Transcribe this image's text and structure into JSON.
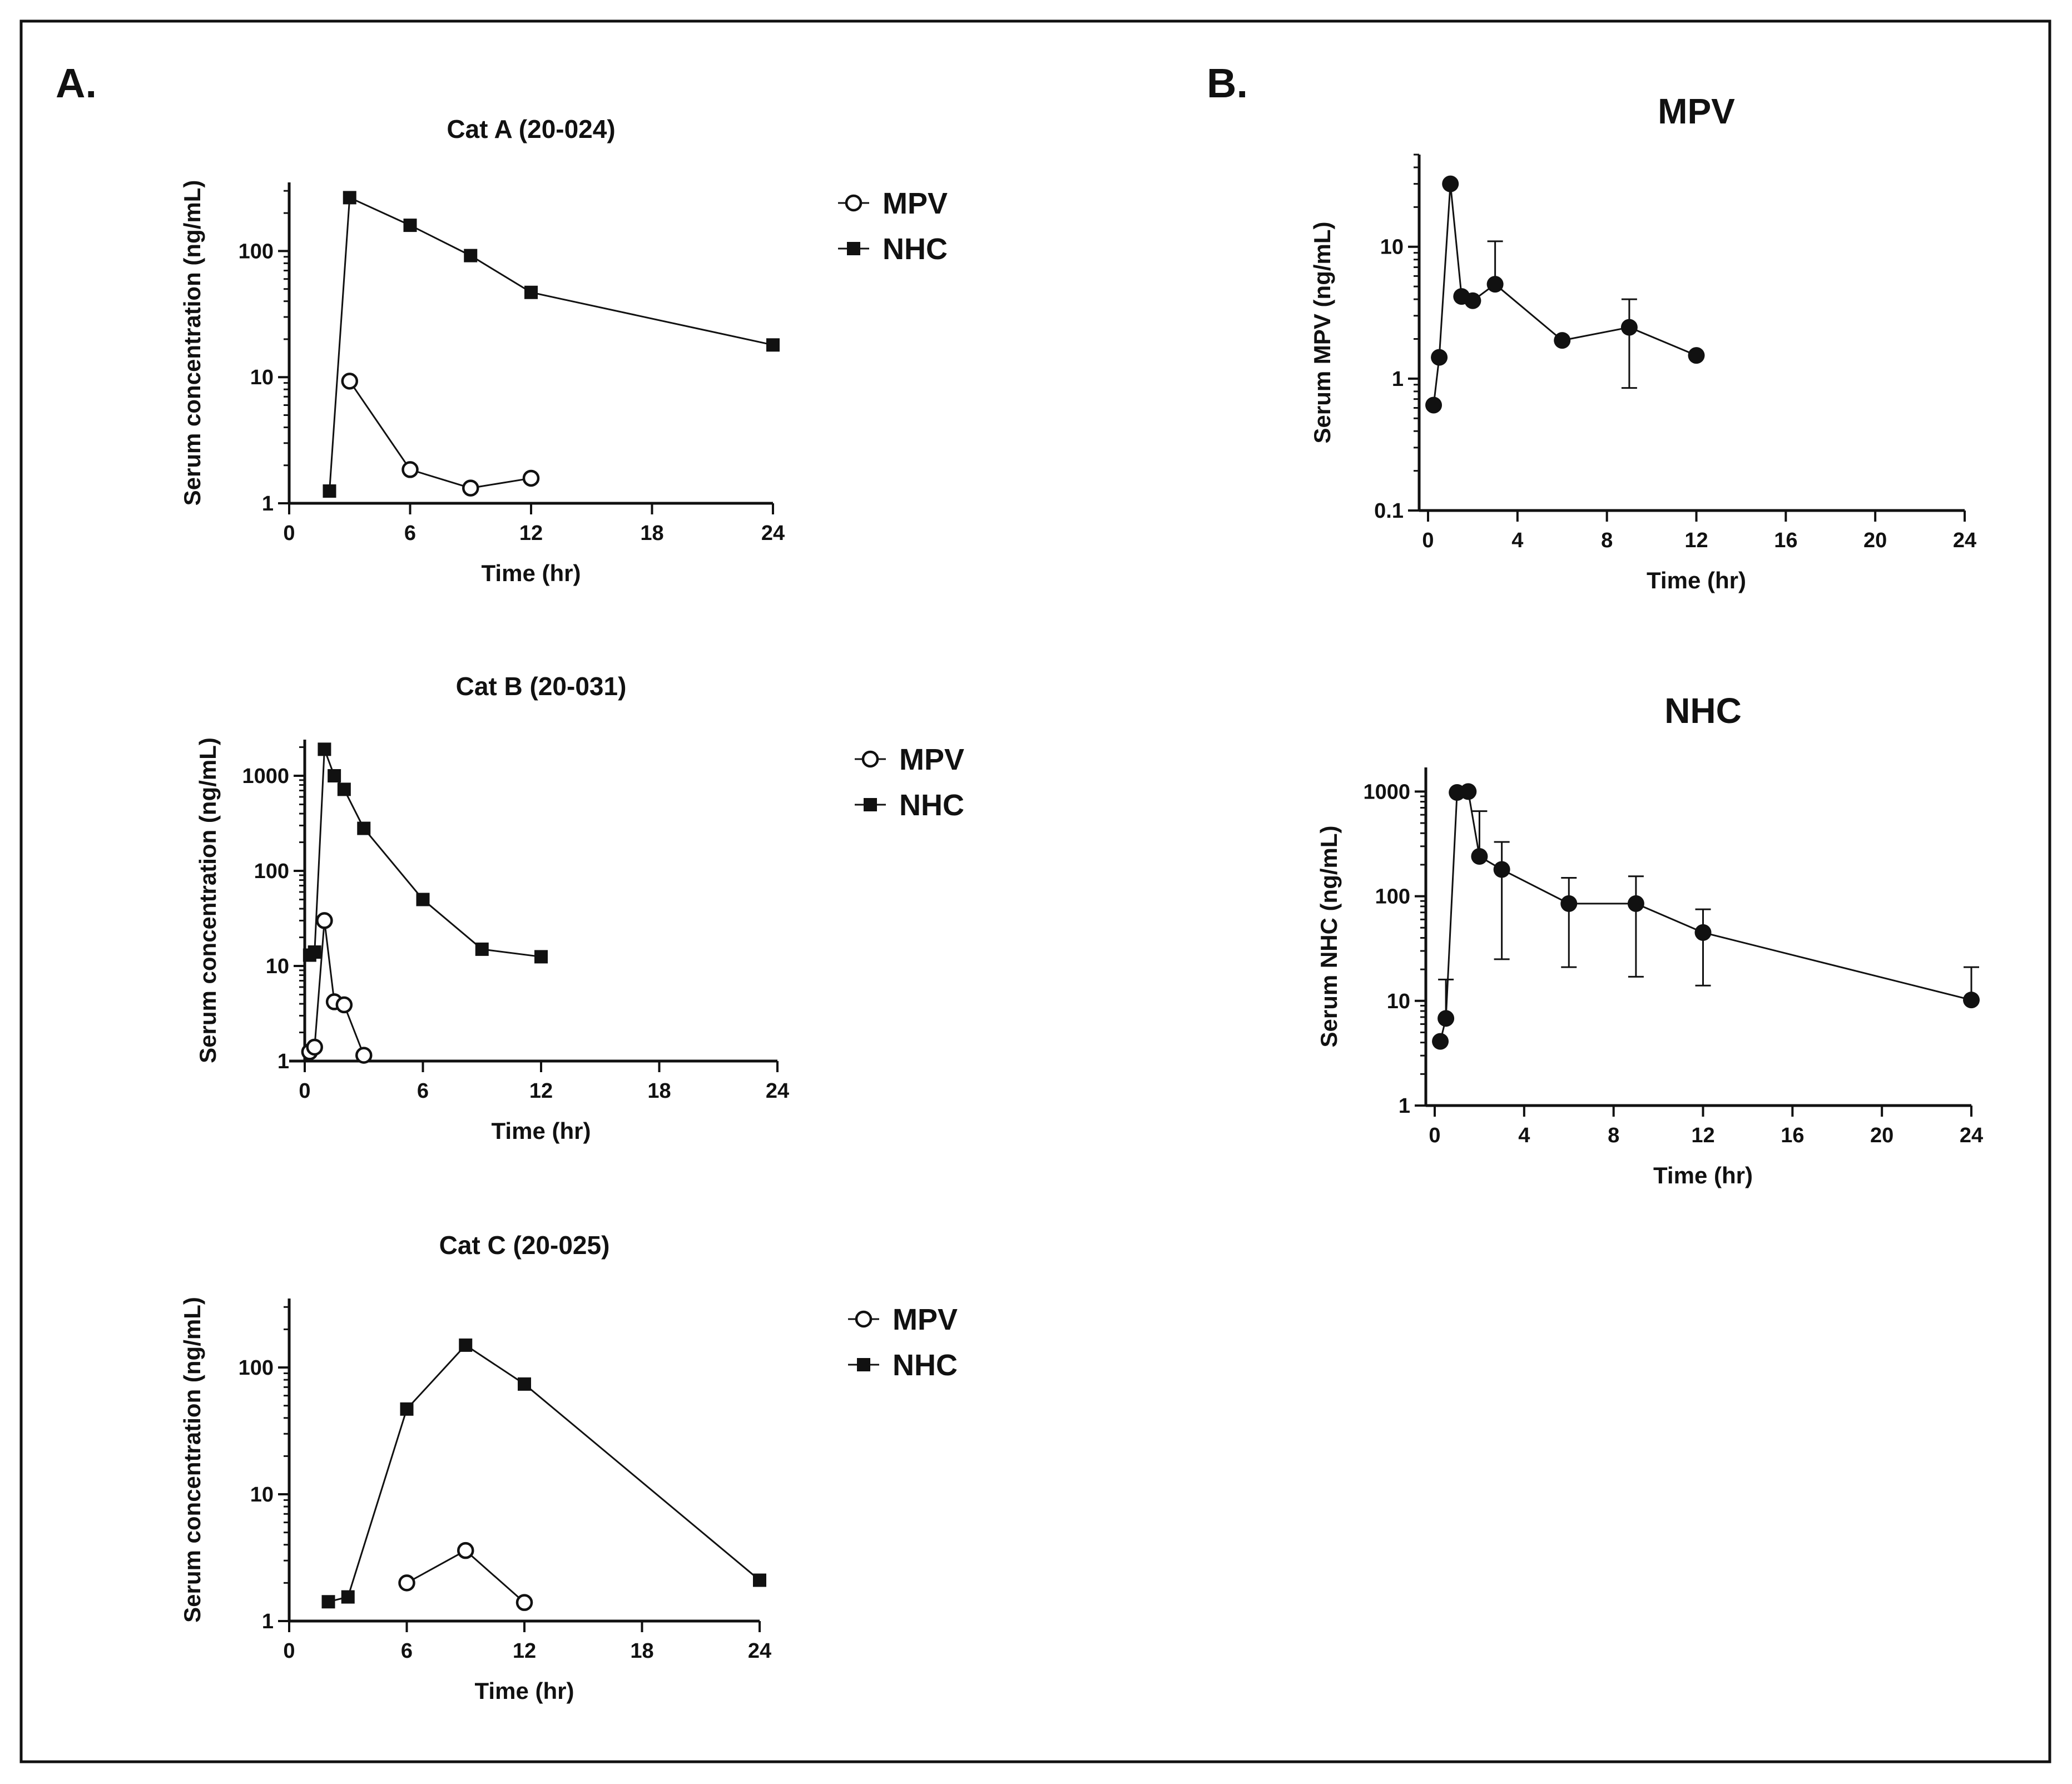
{
  "panels": {
    "a_label": "A.",
    "b_label": "B."
  },
  "colors": {
    "ink": "#111111",
    "background": "#ffffff"
  },
  "chart_data": [
    {
      "id": "cat-a",
      "type": "line",
      "yscale": "log",
      "title": "Cat A (20-024)",
      "xlabel": "Time (hr)",
      "ylabel": "Serum concentration (ng/mL)",
      "xlim": [
        0,
        24
      ],
      "ylim": [
        1,
        350
      ],
      "xticks": [
        0,
        6,
        12,
        18,
        24
      ],
      "xtick_labels": [
        "0",
        "6",
        "12",
        "18",
        "24"
      ],
      "yticks": [
        1,
        10,
        100
      ],
      "ytick_labels": [
        "1",
        "10",
        "100"
      ],
      "legend": [
        "MPV",
        "NHC"
      ],
      "legend_position": "right",
      "series": [
        {
          "name": "MPV",
          "marker": "open-circle",
          "x": [
            3,
            6,
            9,
            12
          ],
          "y": [
            9.3,
            1.85,
            1.32,
            1.58
          ]
        },
        {
          "name": "NHC",
          "marker": "filled-square",
          "x": [
            2,
            3,
            6,
            9,
            12,
            24
          ],
          "y": [
            1.25,
            265,
            160,
            92,
            47,
            18
          ]
        }
      ]
    },
    {
      "id": "cat-b",
      "type": "line",
      "yscale": "log",
      "title": "Cat B (20-031)",
      "xlabel": "Time (hr)",
      "ylabel": "Serum concentration (ng/mL)",
      "xlim": [
        0,
        24
      ],
      "ylim": [
        1,
        2400
      ],
      "xticks": [
        0,
        6,
        12,
        18,
        24
      ],
      "xtick_labels": [
        "0",
        "6",
        "12",
        "18",
        "24"
      ],
      "yticks": [
        1,
        10,
        100,
        1000
      ],
      "ytick_labels": [
        "1",
        "10",
        "100",
        "1000"
      ],
      "legend": [
        "MPV",
        "NHC"
      ],
      "legend_position": "right",
      "series": [
        {
          "name": "MPV",
          "marker": "open-circle",
          "x": [
            0.25,
            0.5,
            1,
            1.5,
            2,
            3
          ],
          "y": [
            1.25,
            1.4,
            30,
            4.2,
            3.9,
            1.15
          ]
        },
        {
          "name": "NHC",
          "marker": "filled-square",
          "x": [
            0.25,
            0.5,
            1,
            1.5,
            2,
            3,
            6,
            9,
            12
          ],
          "y": [
            13,
            14,
            1900,
            1000,
            720,
            280,
            50,
            15,
            12.5
          ]
        }
      ]
    },
    {
      "id": "cat-c",
      "type": "line",
      "yscale": "log",
      "title": "Cat C (20-025)",
      "xlabel": "Time (hr)",
      "ylabel": "Serum concentration (ng/mL)",
      "xlim": [
        0,
        24
      ],
      "ylim": [
        1,
        350
      ],
      "xticks": [
        0,
        6,
        12,
        18,
        24
      ],
      "xtick_labels": [
        "0",
        "6",
        "12",
        "18",
        "24"
      ],
      "yticks": [
        1,
        10,
        100
      ],
      "ytick_labels": [
        "1",
        "10",
        "100"
      ],
      "legend": [
        "MPV",
        "NHC"
      ],
      "legend_position": "right",
      "series": [
        {
          "name": "MPV",
          "marker": "open-circle",
          "x": [
            6,
            9,
            12
          ],
          "y": [
            2.0,
            3.6,
            1.4
          ]
        },
        {
          "name": "NHC",
          "marker": "filled-square",
          "x": [
            2,
            3,
            6,
            9,
            12,
            24
          ],
          "y": [
            1.42,
            1.55,
            47,
            150,
            74,
            2.1
          ]
        }
      ]
    },
    {
      "id": "mean-mpv",
      "type": "line",
      "yscale": "log",
      "title": "MPV",
      "xlabel": "Time (hr)",
      "ylabel": "Serum MPV (ng/mL)",
      "xlim": [
        0,
        24
      ],
      "ylim": [
        0.1,
        50
      ],
      "xticks": [
        0,
        4,
        8,
        12,
        16,
        20,
        24
      ],
      "xtick_labels": [
        "0",
        "4",
        "8",
        "12",
        "16",
        "20",
        "24"
      ],
      "yticks": [
        0.1,
        1,
        10
      ],
      "ytick_labels": [
        "0.1",
        "1",
        "10"
      ],
      "series": [
        {
          "name": "MPV",
          "marker": "filled-circle",
          "x": [
            0.25,
            0.5,
            1,
            1.5,
            2,
            3,
            6,
            9,
            12
          ],
          "y": [
            0.63,
            1.45,
            30,
            4.2,
            3.9,
            5.2,
            1.95,
            2.45,
            1.5
          ],
          "err_upper": [
            null,
            null,
            null,
            null,
            null,
            11,
            null,
            4.0,
            null
          ],
          "err_lower": [
            null,
            null,
            null,
            null,
            null,
            null,
            null,
            0.85,
            null
          ]
        }
      ]
    },
    {
      "id": "mean-nhc",
      "type": "line",
      "yscale": "log",
      "title": "NHC",
      "xlabel": "Time (hr)",
      "ylabel": "Serum NHC (ng/mL)",
      "xlim": [
        0,
        24
      ],
      "ylim": [
        1,
        1700
      ],
      "xticks": [
        0,
        4,
        8,
        12,
        16,
        20,
        24
      ],
      "xtick_labels": [
        "0",
        "4",
        "8",
        "12",
        "16",
        "20",
        "24"
      ],
      "yticks": [
        1,
        10,
        100,
        1000
      ],
      "ytick_labels": [
        "1",
        "10",
        "100",
        "1000"
      ],
      "series": [
        {
          "name": "NHC",
          "marker": "filled-circle",
          "x": [
            0.25,
            0.5,
            1,
            1.5,
            2,
            3,
            6,
            9,
            12,
            24
          ],
          "y": [
            4.1,
            6.8,
            980,
            1000,
            240,
            180,
            85,
            85,
            45,
            10.2
          ],
          "err_upper": [
            null,
            16,
            null,
            null,
            650,
            330,
            150,
            155,
            75,
            21
          ],
          "err_lower": [
            null,
            null,
            null,
            null,
            null,
            25,
            21,
            17,
            14,
            null
          ]
        }
      ]
    }
  ]
}
